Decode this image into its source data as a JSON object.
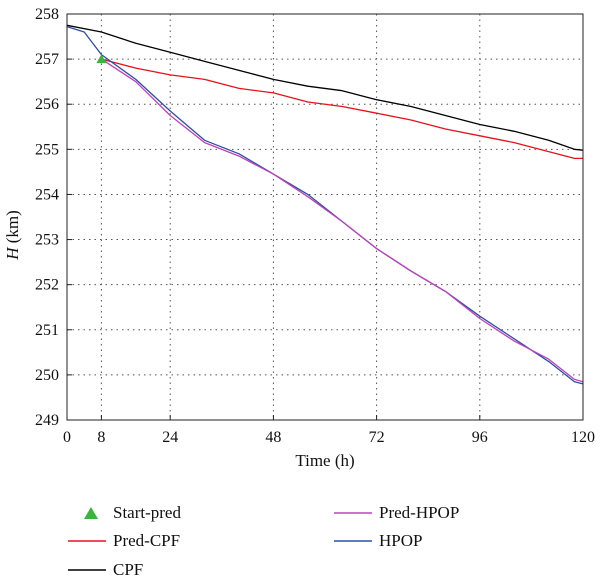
{
  "chart_data": {
    "type": "line",
    "xlabel": "Time (h)",
    "ylabel_italic": "H",
    "ylabel_unit": " (km)",
    "xlim": [
      0,
      120
    ],
    "ylim": [
      249,
      258
    ],
    "xticks": [
      0,
      8,
      24,
      48,
      72,
      96,
      120
    ],
    "yticks": [
      249,
      250,
      251,
      252,
      253,
      254,
      255,
      256,
      257,
      258
    ],
    "grid": true,
    "legend": [
      {
        "label": "Start-pred",
        "color": "#3cb43c",
        "marker": "triangle"
      },
      {
        "label": "Pred-CPF",
        "color": "#e8121e",
        "marker": "line"
      },
      {
        "label": "CPF",
        "color": "#000000",
        "marker": "line"
      },
      {
        "label": "Pred-HPOP",
        "color": "#c040c0",
        "marker": "line"
      },
      {
        "label": "HPOP",
        "color": "#2c4ea8",
        "marker": "line"
      }
    ],
    "start_pred": {
      "x": 8,
      "y": 257.0
    },
    "series": [
      {
        "name": "CPF",
        "color": "#000000",
        "x": [
          0,
          8,
          16,
          24,
          32,
          40,
          48,
          56,
          64,
          72,
          80,
          88,
          96,
          104,
          112,
          118,
          120
        ],
        "y": [
          257.75,
          257.6,
          257.35,
          257.15,
          256.95,
          256.75,
          256.55,
          256.4,
          256.3,
          256.1,
          255.95,
          255.75,
          255.55,
          255.4,
          255.2,
          255.0,
          254.98
        ]
      },
      {
        "name": "Pred-CPF",
        "color": "#e8121e",
        "x": [
          8,
          16,
          24,
          32,
          40,
          48,
          56,
          64,
          72,
          80,
          88,
          96,
          104,
          112,
          118,
          120
        ],
        "y": [
          257.0,
          256.8,
          256.65,
          256.55,
          256.35,
          256.25,
          256.05,
          255.95,
          255.8,
          255.65,
          255.45,
          255.3,
          255.15,
          254.95,
          254.8,
          254.8
        ]
      },
      {
        "name": "HPOP",
        "color": "#2c4ea8",
        "x": [
          0,
          4,
          8,
          16,
          24,
          32,
          40,
          48,
          56,
          64,
          72,
          80,
          88,
          96,
          104,
          112,
          118,
          120
        ],
        "y": [
          257.72,
          257.6,
          257.1,
          256.55,
          255.85,
          255.2,
          254.9,
          254.45,
          254.0,
          253.4,
          252.8,
          252.3,
          251.85,
          251.3,
          250.8,
          250.3,
          249.85,
          249.8
        ]
      },
      {
        "name": "Pred-HPOP",
        "color": "#c040c0",
        "x": [
          8,
          16,
          24,
          32,
          40,
          48,
          56,
          64,
          72,
          80,
          88,
          96,
          104,
          112,
          118,
          120
        ],
        "y": [
          257.0,
          256.5,
          255.75,
          255.15,
          254.85,
          254.45,
          253.95,
          253.4,
          252.8,
          252.3,
          251.85,
          251.25,
          250.75,
          250.35,
          249.9,
          249.85
        ]
      }
    ]
  }
}
